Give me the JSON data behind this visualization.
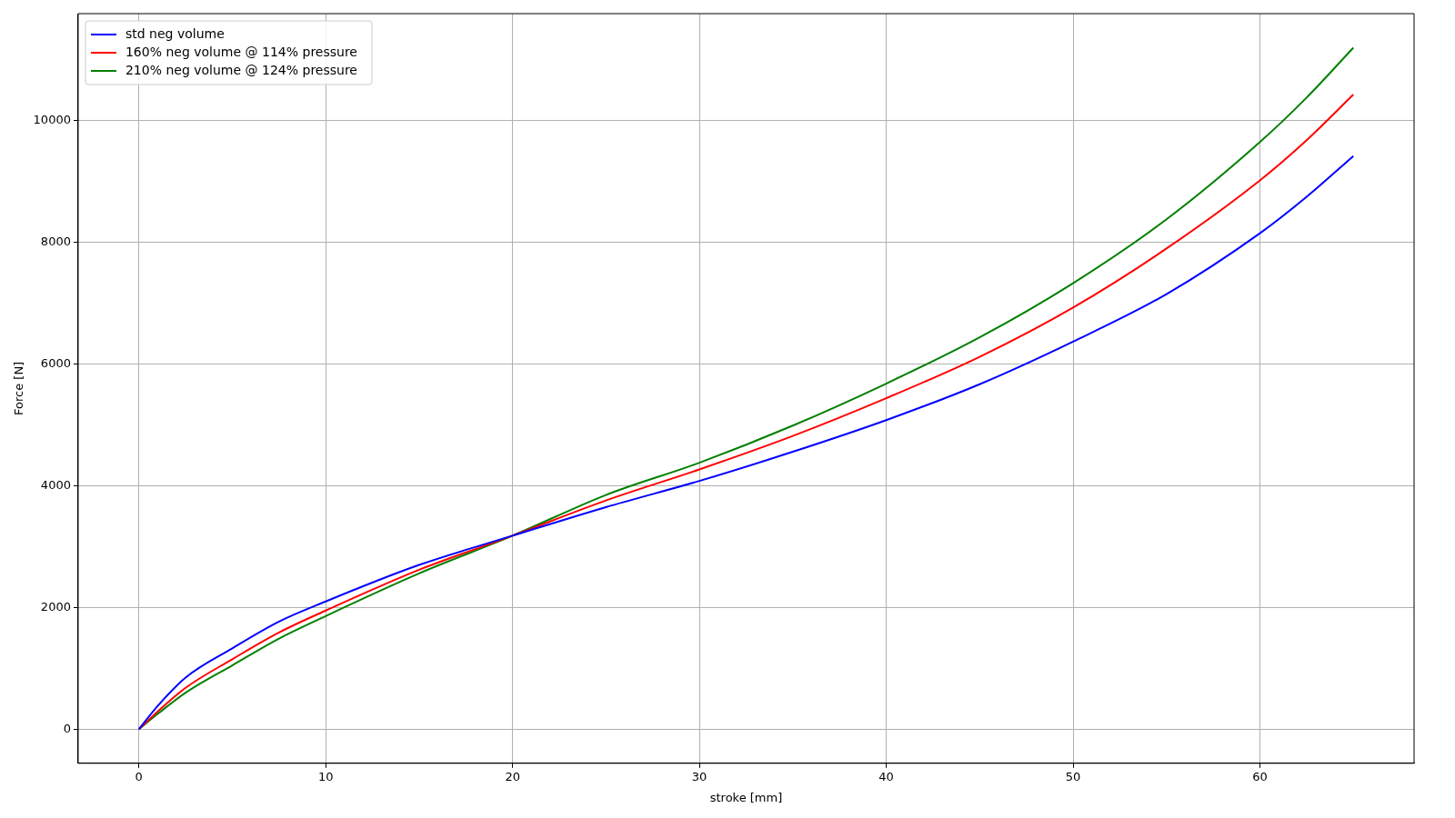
{
  "chart_data": {
    "type": "line",
    "xlabel": "stroke [mm]",
    "ylabel": "Force [N]",
    "x": [
      0,
      1,
      2.5,
      5,
      7.5,
      10,
      15,
      20,
      25,
      30,
      35,
      40,
      45,
      50,
      55,
      60,
      62.5,
      65
    ],
    "series": [
      {
        "name": "std neg volume",
        "color": "#0000ff",
        "values": [
          0,
          380,
          850,
          1330,
          1770,
          2100,
          2700,
          3180,
          3650,
          4080,
          4560,
          5080,
          5670,
          6370,
          7150,
          8150,
          8750,
          9420
        ]
      },
      {
        "name": "160% neg volume @ 114% pressure",
        "color": "#ff0000",
        "values": [
          0,
          290,
          680,
          1150,
          1590,
          1950,
          2620,
          3180,
          3760,
          4270,
          4820,
          5440,
          6120,
          6930,
          7900,
          9020,
          9680,
          10430
        ]
      },
      {
        "name": "210% neg volume @ 124% pressure",
        "color": "#008000",
        "values": [
          0,
          250,
          600,
          1050,
          1490,
          1860,
          2560,
          3180,
          3850,
          4380,
          4990,
          5680,
          6440,
          7330,
          8380,
          9650,
          10380,
          11200
        ]
      }
    ],
    "xlim": [
      -3.25,
      68.25
    ],
    "xticks": [
      0,
      10,
      20,
      30,
      40,
      50,
      60
    ],
    "ylim": [
      -560,
      11760
    ],
    "yticks": [
      0,
      2000,
      4000,
      6000,
      8000,
      10000
    ],
    "grid": true,
    "legend": "top left",
    "marker": "none",
    "line_style": "solid"
  }
}
